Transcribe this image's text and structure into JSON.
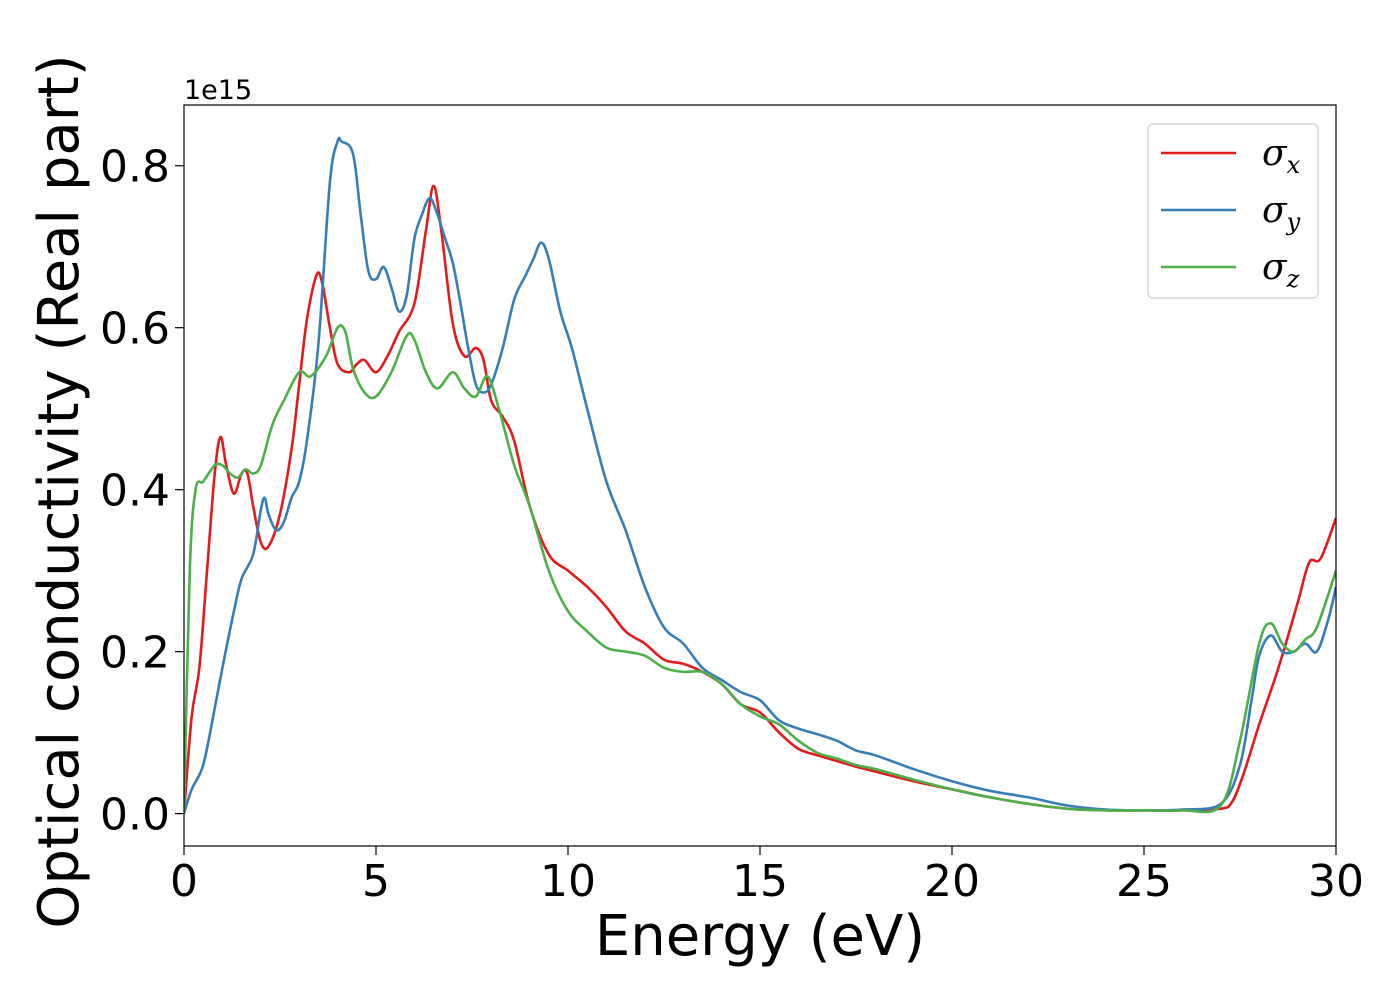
{
  "chart_data": {
    "type": "line",
    "xlabel": "Energy (eV)",
    "ylabel": "Optical conductivity (Real part)",
    "y_offset_label": "1e15",
    "xlim": [
      0,
      30
    ],
    "ylim": [
      -0.04,
      0.875
    ],
    "xticks": [
      0,
      5,
      10,
      15,
      20,
      25,
      30
    ],
    "xtick_labels": [
      "0",
      "5",
      "10",
      "15",
      "20",
      "25",
      "30"
    ],
    "yticks": [
      0.0,
      0.2,
      0.4,
      0.6,
      0.8
    ],
    "ytick_labels": [
      "0.0",
      "0.2",
      "0.4",
      "0.6",
      "0.8"
    ],
    "grid": false,
    "legend_position": "top-right",
    "series": [
      {
        "name": "σx",
        "symbol": "σ",
        "subscript": "x",
        "color": "#e41a1c",
        "x": [
          0,
          0.2,
          0.4,
          0.6,
          0.8,
          0.95,
          1.1,
          1.3,
          1.5,
          1.65,
          1.8,
          2.0,
          2.2,
          2.5,
          2.8,
          3.0,
          3.2,
          3.45,
          3.6,
          3.8,
          4.0,
          4.3,
          4.5,
          4.7,
          5.0,
          5.3,
          5.6,
          6.0,
          6.3,
          6.5,
          6.7,
          7.0,
          7.3,
          7.6,
          7.8,
          8.0,
          8.3,
          8.6,
          9.0,
          9.5,
          10.0,
          10.5,
          11.0,
          11.5,
          12.0,
          12.5,
          13.0,
          13.5,
          14.0,
          14.5,
          15.0,
          15.5,
          16.0,
          16.5,
          17.0,
          17.5,
          18.0,
          19.0,
          20.0,
          21.0,
          22.0,
          23.0,
          24.0,
          25.0,
          26.0,
          27.0,
          27.3,
          27.6,
          28.0,
          28.5,
          29.0,
          29.3,
          29.6,
          30.0
        ],
        "y": [
          0,
          0.12,
          0.18,
          0.3,
          0.42,
          0.465,
          0.43,
          0.395,
          0.42,
          0.42,
          0.38,
          0.335,
          0.33,
          0.37,
          0.45,
          0.53,
          0.61,
          0.665,
          0.655,
          0.6,
          0.555,
          0.545,
          0.555,
          0.56,
          0.545,
          0.565,
          0.595,
          0.63,
          0.72,
          0.775,
          0.72,
          0.605,
          0.565,
          0.575,
          0.56,
          0.51,
          0.49,
          0.46,
          0.38,
          0.32,
          0.3,
          0.28,
          0.255,
          0.225,
          0.21,
          0.19,
          0.185,
          0.175,
          0.16,
          0.135,
          0.125,
          0.1,
          0.08,
          0.072,
          0.065,
          0.058,
          0.052,
          0.04,
          0.03,
          0.02,
          0.012,
          0.006,
          0.004,
          0.004,
          0.004,
          0.006,
          0.015,
          0.05,
          0.11,
          0.18,
          0.26,
          0.31,
          0.315,
          0.365
        ]
      },
      {
        "name": "σy",
        "symbol": "σ",
        "subscript": "y",
        "color": "#377eb8",
        "x": [
          0,
          0.2,
          0.5,
          0.8,
          1.0,
          1.3,
          1.5,
          1.8,
          2.0,
          2.1,
          2.2,
          2.4,
          2.6,
          2.8,
          3.0,
          3.2,
          3.5,
          3.8,
          4.0,
          4.1,
          4.4,
          4.6,
          4.8,
          5.0,
          5.2,
          5.4,
          5.6,
          5.8,
          6.0,
          6.2,
          6.4,
          6.6,
          6.8,
          7.0,
          7.2,
          7.4,
          7.6,
          7.8,
          8.0,
          8.3,
          8.6,
          8.9,
          9.1,
          9.3,
          9.5,
          9.8,
          10.1,
          10.5,
          11.0,
          11.5,
          12.0,
          12.5,
          13.0,
          13.5,
          14.0,
          14.5,
          15.0,
          15.5,
          16.0,
          16.5,
          17.0,
          17.5,
          18.0,
          19.0,
          20.0,
          21.0,
          22.0,
          23.0,
          24.0,
          25.0,
          26.0,
          27.0,
          27.5,
          27.8,
          28.0,
          28.3,
          28.6,
          28.9,
          29.2,
          29.5,
          29.8,
          30.0
        ],
        "y": [
          0,
          0.03,
          0.06,
          0.13,
          0.18,
          0.25,
          0.29,
          0.32,
          0.375,
          0.39,
          0.37,
          0.35,
          0.36,
          0.39,
          0.41,
          0.46,
          0.58,
          0.78,
          0.83,
          0.83,
          0.815,
          0.74,
          0.67,
          0.66,
          0.675,
          0.65,
          0.62,
          0.64,
          0.71,
          0.74,
          0.76,
          0.74,
          0.71,
          0.68,
          0.63,
          0.575,
          0.53,
          0.52,
          0.53,
          0.575,
          0.635,
          0.665,
          0.685,
          0.705,
          0.685,
          0.62,
          0.575,
          0.5,
          0.41,
          0.35,
          0.28,
          0.23,
          0.21,
          0.18,
          0.165,
          0.15,
          0.14,
          0.115,
          0.105,
          0.098,
          0.09,
          0.078,
          0.072,
          0.055,
          0.04,
          0.028,
          0.02,
          0.01,
          0.005,
          0.004,
          0.005,
          0.012,
          0.06,
          0.14,
          0.195,
          0.22,
          0.2,
          0.2,
          0.21,
          0.2,
          0.24,
          0.28
        ]
      },
      {
        "name": "σz",
        "symbol": "σ",
        "subscript": "z",
        "color": "#4daf4a",
        "x": [
          0,
          0.15,
          0.3,
          0.5,
          0.8,
          1.0,
          1.2,
          1.4,
          1.6,
          1.8,
          2.0,
          2.3,
          2.6,
          3.0,
          3.3,
          3.7,
          4.0,
          4.2,
          4.4,
          4.7,
          5.0,
          5.4,
          5.8,
          6.0,
          6.3,
          6.6,
          7.0,
          7.3,
          7.6,
          7.9,
          8.2,
          8.6,
          9.0,
          9.5,
          10.0,
          10.5,
          11.0,
          11.5,
          12.0,
          12.5,
          13.0,
          13.5,
          14.0,
          14.5,
          15.0,
          15.5,
          16.0,
          16.5,
          17.0,
          17.5,
          18.0,
          19.0,
          20.0,
          21.0,
          22.0,
          23.0,
          24.0,
          25.0,
          26.0,
          27.0,
          27.5,
          28.0,
          28.3,
          28.6,
          28.9,
          29.2,
          29.5,
          30.0
        ],
        "y": [
          0,
          0.3,
          0.4,
          0.41,
          0.43,
          0.43,
          0.42,
          0.415,
          0.425,
          0.42,
          0.43,
          0.48,
          0.51,
          0.545,
          0.54,
          0.565,
          0.6,
          0.595,
          0.55,
          0.52,
          0.515,
          0.545,
          0.59,
          0.585,
          0.545,
          0.525,
          0.545,
          0.525,
          0.515,
          0.54,
          0.5,
          0.43,
          0.38,
          0.3,
          0.25,
          0.225,
          0.205,
          0.2,
          0.195,
          0.18,
          0.175,
          0.175,
          0.16,
          0.135,
          0.12,
          0.11,
          0.09,
          0.075,
          0.068,
          0.06,
          0.055,
          0.042,
          0.03,
          0.02,
          0.012,
          0.006,
          0.004,
          0.004,
          0.004,
          0.01,
          0.09,
          0.21,
          0.235,
          0.21,
          0.2,
          0.215,
          0.23,
          0.3
        ]
      }
    ]
  }
}
